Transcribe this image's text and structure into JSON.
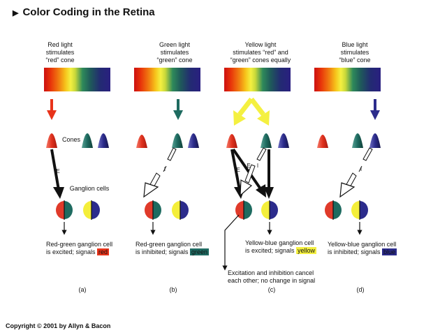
{
  "title": "Color Coding in the Retina",
  "panels": [
    {
      "stimulus": "Red light\nstimulates\n“red” cone",
      "caption_pre": "Red-green ganglion cell\nis excited; signals ",
      "signal": "red",
      "signal_color": "#e8331a",
      "letter": "(a)"
    },
    {
      "stimulus": "Green light\nstimulates\n“green” cone",
      "caption_pre": "Red-green ganglion cell\nis inhibited; signals ",
      "signal": "green",
      "signal_color": "#1f6b62",
      "letter": "(b)"
    },
    {
      "stimulus": "Yellow light\nstimulates “red” and\n“green” cones equally",
      "caption_pre": "Yellow-blue ganglion cell\nis excited; signals ",
      "signal": "yellow",
      "signal_color": "#f4f040",
      "letter": "(c)"
    },
    {
      "stimulus": "Blue light\nstimulates\n“blue” cone",
      "caption_pre": "Yellow-blue ganglion cell\nis inhibited; signals ",
      "signal": "blue",
      "signal_color": "#2a2a8a",
      "letter": "(d)"
    }
  ],
  "labels": {
    "cones": "Cones",
    "ganglion": "Ganglion cells",
    "excite": "E",
    "inhibit": "I",
    "cancel": "Excitation and inhibition cancel\neach other; no change in signal"
  },
  "colors": {
    "red_cone": "#e03a2a",
    "green_cone": "#1e6b60",
    "blue_cone": "#2c2c8c",
    "yellow": "#f4ee3a"
  },
  "copyright": "Copyright © 2001 by Allyn & Bacon"
}
